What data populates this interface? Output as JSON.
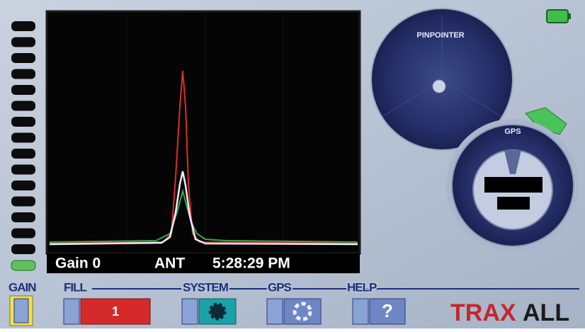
{
  "status_bar": {
    "gain": "Gain 0",
    "antenna": "ANT",
    "time": "5:28:29 PM"
  },
  "dials": {
    "pinpointer": "PINPOINTER",
    "gps": "GPS"
  },
  "menu": {
    "labels": [
      "GAIN",
      "FILL",
      "SYSTEM",
      "GPS",
      "HELP"
    ],
    "fill_value": "1",
    "help_icon": "?"
  },
  "brand": {
    "part1": "TRAX",
    "part2": "ALL"
  }
}
